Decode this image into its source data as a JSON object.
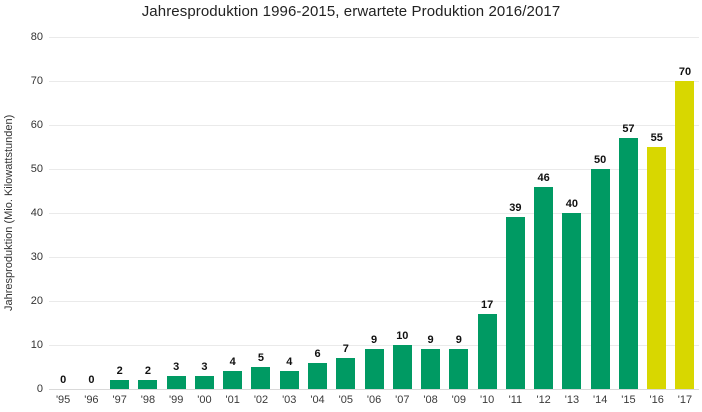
{
  "chart_data": {
    "type": "bar",
    "title": "Jahresproduktion 1996-2015, erwartete Produktion 2016/2017",
    "xlabel": "",
    "ylabel": "Jahresproduktion (Mio. Kilowattstunden)",
    "ylim": [
      0,
      80
    ],
    "ytick_step": 10,
    "grid": true,
    "legend_position": "none",
    "categories": [
      "'95",
      "'96",
      "'97",
      "'98",
      "'99",
      "'00",
      "'01",
      "'02",
      "'03",
      "'04",
      "'05",
      "'06",
      "'07",
      "'08",
      "'09",
      "'10",
      "'11",
      "'12",
      "'13",
      "'14",
      "'15",
      "'16",
      "'17"
    ],
    "values": [
      0,
      0,
      2,
      2,
      3,
      3,
      4,
      5,
      4,
      6,
      7,
      9,
      10,
      9,
      9,
      17,
      39,
      46,
      40,
      50,
      57,
      55,
      70
    ],
    "bar_types": [
      "actual",
      "actual",
      "actual",
      "actual",
      "actual",
      "actual",
      "actual",
      "actual",
      "actual",
      "actual",
      "actual",
      "actual",
      "actual",
      "actual",
      "actual",
      "actual",
      "actual",
      "actual",
      "actual",
      "actual",
      "actual",
      "expected",
      "expected"
    ],
    "colors": {
      "actual": "#009A63",
      "expected": "#D8D700",
      "gridline": "#eaeaea",
      "baseline": "#d9d9d9",
      "value_label": "#111111",
      "tick_label": "#333333"
    }
  }
}
